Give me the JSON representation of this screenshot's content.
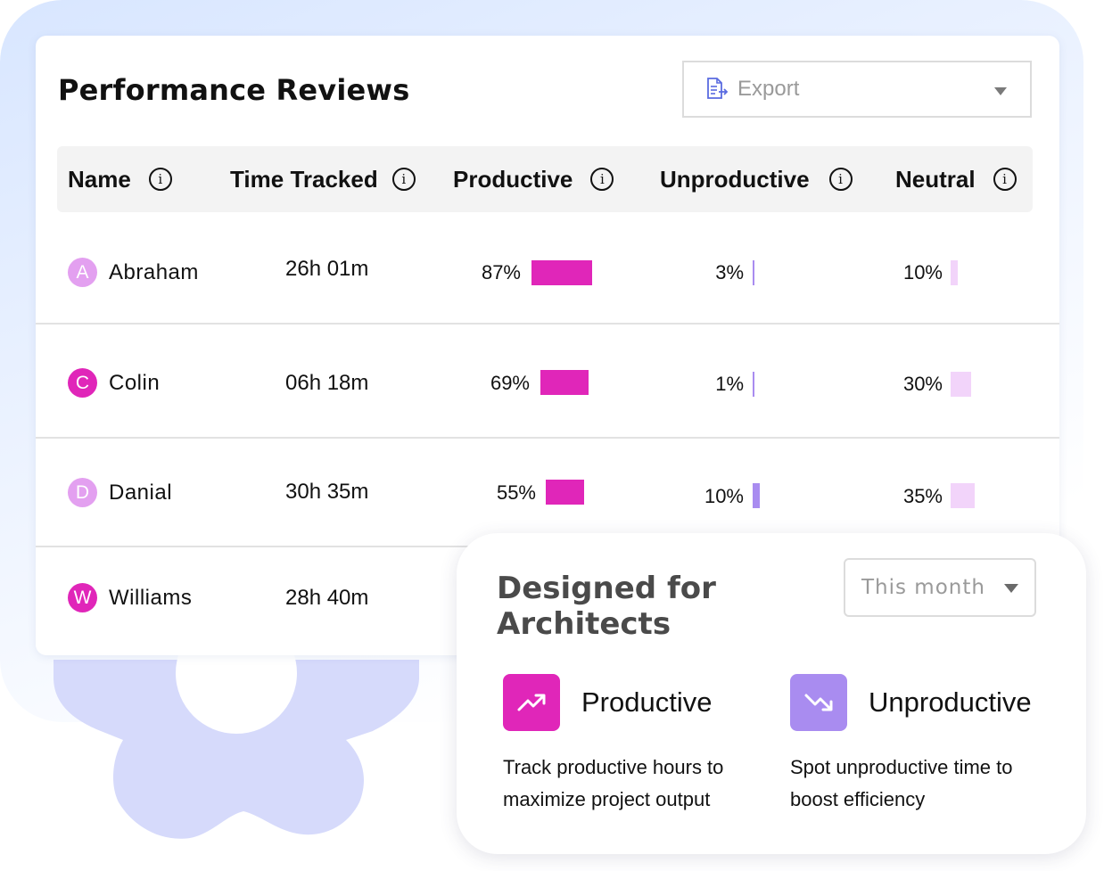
{
  "title": "Performance Reviews",
  "export_label": "Export",
  "columns": [
    "Name",
    "Time Tracked",
    "Productive",
    "Unproductive",
    "Neutral"
  ],
  "rows": [
    {
      "initial": "A",
      "name": "Abraham",
      "time": "26h 01m",
      "productive": "87%",
      "productive_value": 87,
      "unproductive": "3%",
      "unproductive_value": 3,
      "neutral": "10%",
      "neutral_value": 10,
      "avatar_color": "#e3a0f0"
    },
    {
      "initial": "C",
      "name": "Colin",
      "time": "06h 18m",
      "productive": "69%",
      "productive_value": 69,
      "unproductive": "1%",
      "unproductive_value": 1,
      "neutral": "30%",
      "neutral_value": 30,
      "avatar_color": "#e026b9"
    },
    {
      "initial": "D",
      "name": "Danial",
      "time": "30h 35m",
      "productive": "55%",
      "productive_value": 55,
      "unproductive": "10%",
      "unproductive_value": 10,
      "neutral": "35%",
      "neutral_value": 35,
      "avatar_color": "#e3a0f0"
    },
    {
      "initial": "W",
      "name": "Williams",
      "time": "28h 40m",
      "avatar_color": "#e026b9"
    }
  ],
  "colors": {
    "productive": "#e026b9",
    "unproductive": "#a98cf0",
    "neutral": "#f2d4fa"
  },
  "popup": {
    "title": "Designed for Architects",
    "period": "This month",
    "features": [
      {
        "icon": "trending-up-icon",
        "title": "Productive",
        "desc": "Track productive hours to maximize project output",
        "color": "#e026b9"
      },
      {
        "icon": "trending-down-icon",
        "title": "Unproductive",
        "desc": "Spot unproductive time to boost efficiency",
        "color": "#a98cf0"
      }
    ]
  }
}
